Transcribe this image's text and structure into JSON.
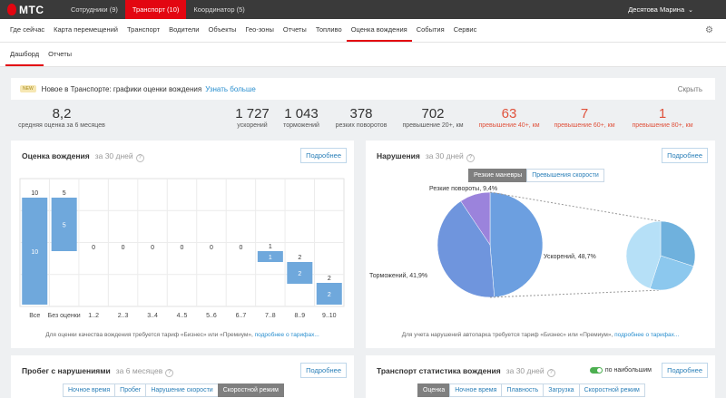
{
  "topbar": {
    "logo": "МТС",
    "tabs": [
      {
        "label": "Сотрудники (9)",
        "active": false
      },
      {
        "label": "Транспорт (10)",
        "active": true
      },
      {
        "label": "Координатор (5)",
        "active": false
      }
    ],
    "user": "Десятова Марина"
  },
  "nav": {
    "items": [
      "Где сейчас",
      "Карта перемещений",
      "Транспорт",
      "Водители",
      "Объекты",
      "Гео-зоны",
      "Отчеты",
      "Топливо",
      "Оценка вождения",
      "События",
      "Сервис"
    ],
    "active": "Оценка вождения"
  },
  "subnav": {
    "items": [
      "Дашборд",
      "Отчеты"
    ],
    "active": "Дашборд"
  },
  "notice": {
    "badge": "NEW",
    "text": "Новое в Транспорте: графики оценки вождения",
    "link": "Узнать больше",
    "close": "Скрыть"
  },
  "stats": [
    {
      "value": "8,2",
      "label": "средняя оценка за 6 месяцев",
      "red": false
    },
    {
      "value": "1 727",
      "label": "ускорений",
      "red": false
    },
    {
      "value": "1 043",
      "label": "торможений",
      "red": false
    },
    {
      "value": "378",
      "label": "резких поворотов",
      "red": false
    },
    {
      "value": "702",
      "label": "превышение 20+, км",
      "red": false
    },
    {
      "value": "63",
      "label": "превышение 40+, км",
      "red": true
    },
    {
      "value": "7",
      "label": "превышение 60+, км",
      "red": true
    },
    {
      "value": "1",
      "label": "превышение 80+, км",
      "red": true
    }
  ],
  "rating_panel": {
    "title": "Оценка вождения",
    "period": "за 30 дней",
    "more": "Подробнее",
    "footnote": "Для оценки качества вождения требуется тариф «Бизнес» или «Премиум»,",
    "footnote_link": "подробнее о тарифах..."
  },
  "violations_panel": {
    "title": "Нарушения",
    "period": "за 30 дней",
    "more": "Подробнее",
    "tabs": [
      {
        "label": "Резкие маневры",
        "active": true
      },
      {
        "label": "Превышения скорости",
        "active": false
      }
    ],
    "footnote": "Для учета нарушений автопарка требуется тариф «Бизнес» или «Премиум»,",
    "footnote_link": "подробнее о тарифах..."
  },
  "mileage_panel": {
    "title": "Пробег с нарушениями",
    "period": "за 6 месяцев",
    "more": "Подробнее",
    "tabs": [
      {
        "label": "Ночное время",
        "active": false
      },
      {
        "label": "Пробег",
        "active": false
      },
      {
        "label": "Нарушение скорости",
        "active": false
      },
      {
        "label": "Скоростной режим",
        "active": true
      }
    ]
  },
  "transport_panel": {
    "title": "Транспорт статистика вождения",
    "period": "за 30 дней",
    "toggle_label": "по наибольшим",
    "more": "Подробнее",
    "tabs": [
      {
        "label": "Оценка",
        "active": true
      },
      {
        "label": "Ночное время",
        "active": false
      },
      {
        "label": "Плавность",
        "active": false
      },
      {
        "label": "Загрузка",
        "active": false
      },
      {
        "label": "Скоростной режим",
        "active": false
      }
    ]
  },
  "chart_data": [
    {
      "type": "bar",
      "title": "Оценка вождения",
      "categories": [
        "Все",
        "Без оценки",
        "1..2",
        "2..3",
        "3..4",
        "4..5",
        "5..6",
        "6..7",
        "7..8",
        "8..9",
        "9..10"
      ],
      "values": [
        10,
        5,
        0,
        0,
        0,
        0,
        0,
        0,
        1,
        2,
        2
      ],
      "ylim": [
        0,
        10
      ],
      "color": "#6fa8dc"
    },
    {
      "type": "pie",
      "title": "Нарушения",
      "labels": [
        "Ускорений",
        "Торможений",
        "Резкие повороты"
      ],
      "values": [
        48.7,
        41.9,
        9.4
      ],
      "display": [
        "Ускорений, 48,7%",
        "Торможений, 41,9%",
        "Резкие повороты, 9,4%"
      ],
      "colors": [
        "#6c9fe0",
        "#6f95dd",
        "#9b83dc"
      ],
      "drilldown_colors": [
        "#6fb1dd",
        "#8cc8ee",
        "#b6e0f7"
      ]
    }
  ]
}
